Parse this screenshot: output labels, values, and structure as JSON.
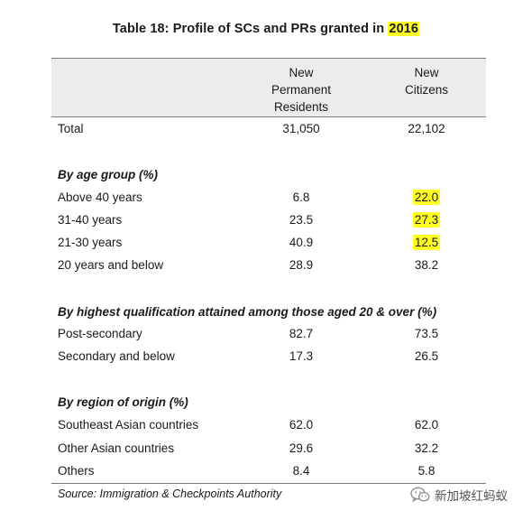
{
  "title": {
    "prefix": "Table 18: Profile of SCs and PRs granted in",
    "year": "2016",
    "year_highlight_color": "#ffff24"
  },
  "columns": [
    {
      "label": "New\nPermanent\nResidents"
    },
    {
      "label": "New\nCitizens"
    }
  ],
  "total": {
    "label": "Total",
    "pr": "31,050",
    "citizens": "22,102"
  },
  "sections": [
    {
      "heading": "By age group (%)",
      "rows": [
        {
          "label": "Above 40 years",
          "pr": "6.8",
          "citizens": "22.0",
          "highlight": true
        },
        {
          "label": "31-40 years",
          "pr": "23.5",
          "citizens": "27.3",
          "highlight": true
        },
        {
          "label": "21-30 years",
          "pr": "40.9",
          "citizens": "12.5",
          "highlight": true
        },
        {
          "label": "20 years and below",
          "pr": "28.9",
          "citizens": "38.2",
          "highlight": false
        }
      ]
    },
    {
      "heading": "By highest qualification attained among those aged 20 & over (%)",
      "rows": [
        {
          "label": "Post-secondary",
          "pr": "82.7",
          "citizens": "73.5",
          "highlight": false
        },
        {
          "label": "Secondary and below",
          "pr": "17.3",
          "citizens": "26.5",
          "highlight": false
        }
      ]
    },
    {
      "heading": "By region of origin (%)",
      "rows": [
        {
          "label": "Southeast Asian countries",
          "pr": "62.0",
          "citizens": "62.0",
          "highlight": false
        },
        {
          "label": "Other Asian countries",
          "pr": "29.6",
          "citizens": "32.2",
          "highlight": false
        },
        {
          "label": "Others",
          "pr": "8.4",
          "citizens": "5.8",
          "highlight": false
        }
      ]
    }
  ],
  "source": "Source: Immigration & Checkpoints Authority",
  "watermark": {
    "text": "新加坡红蚂蚁",
    "icon": "wechat-icon"
  }
}
